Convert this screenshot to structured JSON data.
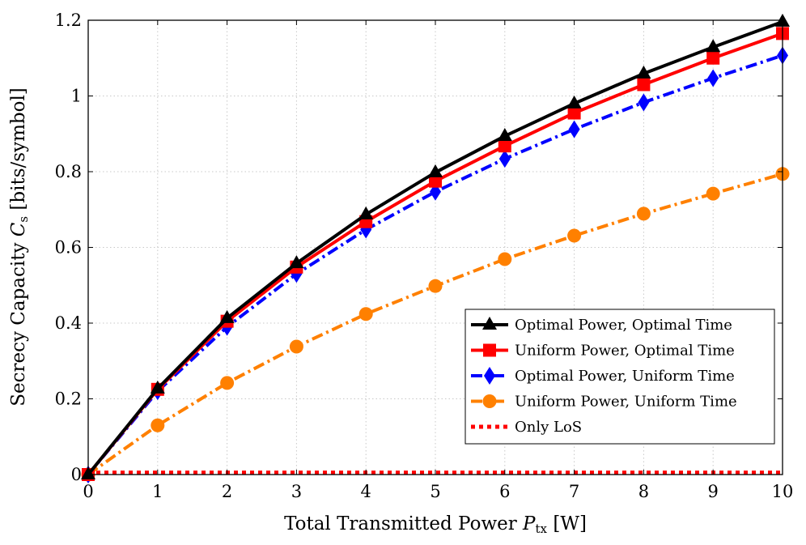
{
  "chart_data": {
    "type": "line",
    "xlabel": "Total Transmitted Power P_tx [W]",
    "xlabel_parts": {
      "main": "Total Transmitted Power ",
      "sym": "P",
      "sub": "tx",
      "unit": " [W]"
    },
    "ylabel": "Secrecy Capacity C_s [bits/symbol]",
    "ylabel_parts": {
      "main": "Secrecy Capacity ",
      "sym": "C",
      "sub": "s",
      "unit": " [bits/symbol]"
    },
    "xlim": [
      0,
      10
    ],
    "ylim": [
      0,
      1.2
    ],
    "xticks": [
      0,
      1,
      2,
      3,
      4,
      5,
      6,
      7,
      8,
      9,
      10
    ],
    "xtick_labels": [
      "0",
      "1",
      "2",
      "3",
      "4",
      "5",
      "6",
      "7",
      "8",
      "9",
      "10"
    ],
    "yticks": [
      0,
      0.2,
      0.4,
      0.6,
      0.8,
      1,
      1.2
    ],
    "ytick_labels": [
      "0",
      "0.2",
      "0.4",
      "0.6",
      "0.8",
      "1",
      "1.2"
    ],
    "grid": true,
    "legend_position": "bottom-right",
    "x": [
      0,
      1,
      2,
      3,
      4,
      5,
      6,
      7,
      8,
      9,
      10
    ],
    "series": [
      {
        "name": "Optimal Power, Optimal Time",
        "color": "#000000",
        "marker": "triangle",
        "dash": "solid",
        "values": [
          0,
          0.227,
          0.413,
          0.558,
          0.687,
          0.798,
          0.894,
          0.98,
          1.059,
          1.129,
          1.196
        ]
      },
      {
        "name": "Uniform Power, Optimal Time",
        "color": "#ff0000",
        "marker": "square",
        "dash": "solid",
        "values": [
          0,
          0.225,
          0.405,
          0.548,
          0.668,
          0.775,
          0.868,
          0.955,
          1.03,
          1.1,
          1.165
        ]
      },
      {
        "name": "Optimal Power, Uniform Time",
        "color": "#0000ff",
        "marker": "diamond",
        "dash": "dash-dot",
        "values": [
          0,
          0.22,
          0.39,
          0.53,
          0.647,
          0.747,
          0.834,
          0.912,
          0.983,
          1.047,
          1.107
        ]
      },
      {
        "name": "Uniform Power, Uniform Time",
        "color": "#ff8000",
        "marker": "circle",
        "dash": "dash-dot",
        "values": [
          0,
          0.13,
          0.242,
          0.338,
          0.424,
          0.498,
          0.569,
          0.631,
          0.689,
          0.742,
          0.794
        ]
      },
      {
        "name": "Only LoS",
        "color": "#ff0000",
        "marker": "none",
        "dash": "dotted",
        "values": [
          0.005,
          0.005,
          0.005,
          0.005,
          0.005,
          0.005,
          0.005,
          0.005,
          0.005,
          0.005,
          0.005
        ]
      }
    ]
  }
}
